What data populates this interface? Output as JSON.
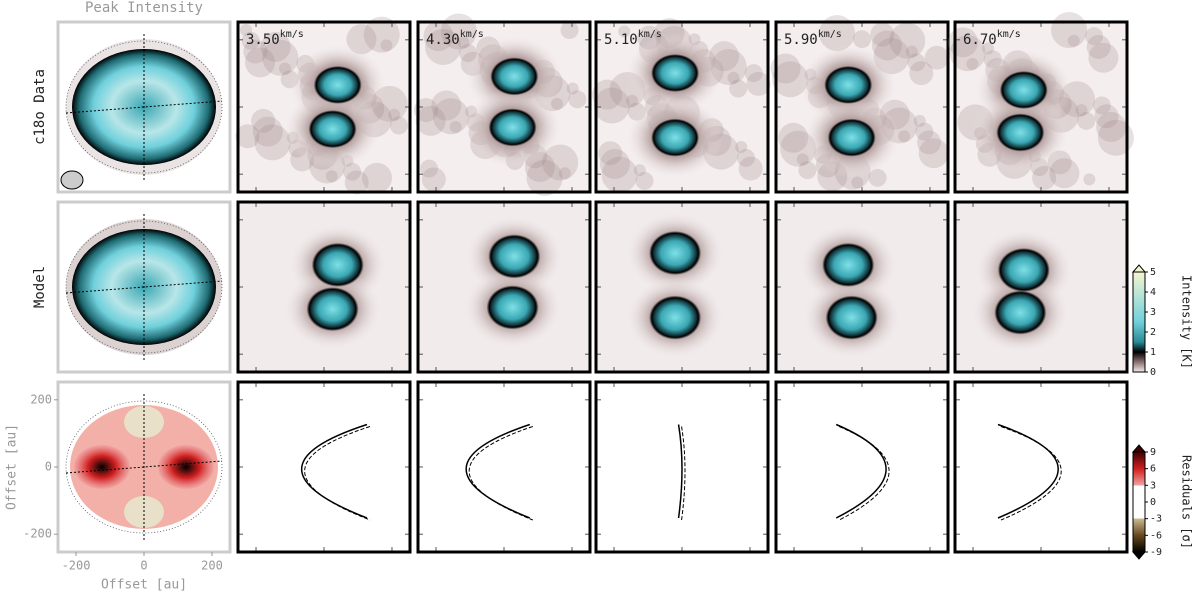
{
  "chart_data": {
    "type": "channel-maps",
    "title": "Peak Intensity",
    "row_labels": [
      "c18o Data",
      "Model"
    ],
    "channels": [
      {
        "value": 3.5,
        "label": "3.50"
      },
      {
        "value": 4.3,
        "label": "4.30"
      },
      {
        "value": 5.1,
        "label": "5.10"
      },
      {
        "value": 5.9,
        "label": "5.90"
      },
      {
        "value": 6.7,
        "label": "6.70"
      }
    ],
    "channel_unit": "km/s",
    "xlabel": "Offset [au]",
    "ylabel": "Offset [au]",
    "xlim": [
      -253,
      253
    ],
    "ylim": [
      -253,
      253
    ],
    "xticks": [
      -200,
      0,
      200
    ],
    "yticks": [
      -200,
      0,
      200
    ],
    "colorbars": [
      {
        "label": "Intensity [K]",
        "ylim": [
          0,
          5
        ],
        "yticks": [
          0,
          1,
          2,
          3,
          4,
          5
        ]
      },
      {
        "label": "Residuals [σ]",
        "ylim": [
          -9,
          9
        ],
        "yticks": [
          -9,
          -6,
          -3,
          0,
          3,
          6,
          9
        ]
      }
    ]
  }
}
